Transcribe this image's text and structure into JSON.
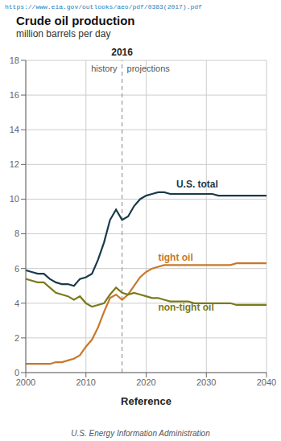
{
  "chart_data": {
    "type": "line",
    "title": "Crude oil production",
    "subtitle": "million barrels per day",
    "url": "https://www.eia.gov/outlooks/aeo/pdf/0383(2017).pdf",
    "footer": "U.S. Energy Information Administration",
    "xlabel": "Reference",
    "xlim": [
      2000,
      2040
    ],
    "ylim": [
      0,
      18
    ],
    "xticks": [
      2000,
      2010,
      2020,
      2030,
      2040
    ],
    "yticks": [
      0,
      2,
      4,
      6,
      8,
      10,
      12,
      14,
      16,
      18
    ],
    "grid": true,
    "reference_line": {
      "x": 2016,
      "label": "2016"
    },
    "annotations": [
      "history",
      "projections"
    ],
    "x": [
      2000,
      2001,
      2002,
      2003,
      2004,
      2005,
      2006,
      2007,
      2008,
      2009,
      2010,
      2011,
      2012,
      2013,
      2014,
      2015,
      2016,
      2017,
      2018,
      2019,
      2020,
      2021,
      2022,
      2023,
      2024,
      2025,
      2026,
      2027,
      2028,
      2029,
      2030,
      2031,
      2032,
      2033,
      2034,
      2035,
      2036,
      2037,
      2038,
      2039,
      2040
    ],
    "series": [
      {
        "name": "U.S. total",
        "color": "#1a3a4a",
        "values": [
          5.9,
          5.8,
          5.7,
          5.7,
          5.4,
          5.2,
          5.1,
          5.1,
          5.0,
          5.4,
          5.5,
          5.7,
          6.5,
          7.5,
          8.8,
          9.4,
          8.8,
          9.0,
          9.6,
          10.0,
          10.2,
          10.3,
          10.4,
          10.4,
          10.3,
          10.3,
          10.3,
          10.3,
          10.3,
          10.3,
          10.3,
          10.3,
          10.2,
          10.2,
          10.2,
          10.2,
          10.2,
          10.2,
          10.2,
          10.2,
          10.2
        ]
      },
      {
        "name": "tight oil",
        "color": "#c8782a",
        "values": [
          0.5,
          0.5,
          0.5,
          0.5,
          0.5,
          0.6,
          0.6,
          0.7,
          0.8,
          1.0,
          1.5,
          1.9,
          2.6,
          3.5,
          4.3,
          4.5,
          4.2,
          4.5,
          5.0,
          5.5,
          5.8,
          6.0,
          6.1,
          6.2,
          6.2,
          6.2,
          6.2,
          6.2,
          6.2,
          6.2,
          6.2,
          6.2,
          6.2,
          6.2,
          6.2,
          6.3,
          6.3,
          6.3,
          6.3,
          6.3,
          6.3
        ]
      },
      {
        "name": "non-tight oil",
        "color": "#7a7a1a",
        "values": [
          5.4,
          5.3,
          5.2,
          5.2,
          4.9,
          4.6,
          4.5,
          4.4,
          4.2,
          4.4,
          4.0,
          3.8,
          3.9,
          4.0,
          4.5,
          4.9,
          4.6,
          4.5,
          4.6,
          4.5,
          4.4,
          4.3,
          4.3,
          4.2,
          4.1,
          4.1,
          4.1,
          4.1,
          4.0,
          4.0,
          4.0,
          4.0,
          4.0,
          4.0,
          4.0,
          3.9,
          3.9,
          3.9,
          3.9,
          3.9,
          3.9
        ]
      }
    ]
  }
}
